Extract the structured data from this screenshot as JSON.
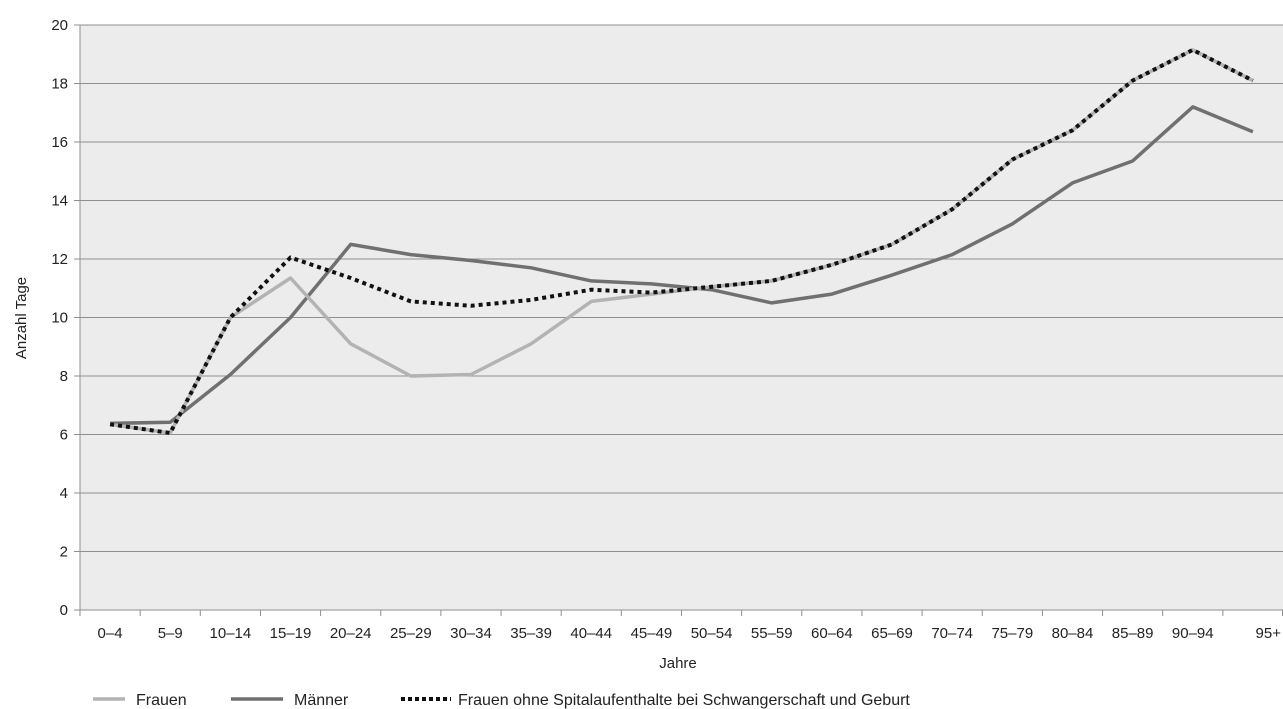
{
  "chart_data": {
    "type": "line",
    "title": "",
    "xlabel": "Jahre",
    "ylabel": "Anzahl Tage",
    "ylim": [
      0,
      20
    ],
    "yticks": [
      0,
      2,
      4,
      6,
      8,
      10,
      12,
      14,
      16,
      18,
      20
    ],
    "grid": "horizontal",
    "legend_position": "bottom",
    "categories": [
      "0–4",
      "5–9",
      "10–14",
      "15–19",
      "20–24",
      "25–29",
      "30–34",
      "35–39",
      "40–44",
      "45–49",
      "50–54",
      "55–59",
      "60–64",
      "65–69",
      "70–74",
      "75–79",
      "80–84",
      "85–89",
      "90–94",
      "95+"
    ],
    "series": [
      {
        "name": "Frauen",
        "color": "#b3b3b3",
        "style": "solid",
        "values": [
          6.35,
          6.05,
          10.0,
          11.35,
          9.1,
          8.0,
          8.05,
          9.1,
          10.55,
          10.8,
          11.05,
          11.25,
          11.8,
          12.5,
          13.7,
          15.4,
          16.4,
          18.1,
          19.15,
          18.1
        ]
      },
      {
        "name": "Männer",
        "color": "#707070",
        "style": "solid",
        "values": [
          6.38,
          6.42,
          8.05,
          10.0,
          12.5,
          12.15,
          11.95,
          11.7,
          11.25,
          11.15,
          10.95,
          10.5,
          10.8,
          11.45,
          12.15,
          13.2,
          14.6,
          15.35,
          17.2,
          16.35
        ]
      },
      {
        "name": "Frauen ohne Spitalaufenthalte bei Schwangerschaft und Geburt",
        "color": "#111111",
        "style": "dotted",
        "values": [
          6.35,
          6.05,
          10.0,
          12.05,
          11.35,
          10.55,
          10.4,
          10.6,
          10.95,
          10.85,
          11.05,
          11.25,
          11.8,
          12.5,
          13.7,
          15.4,
          16.4,
          18.1,
          19.15,
          18.1
        ]
      }
    ]
  }
}
